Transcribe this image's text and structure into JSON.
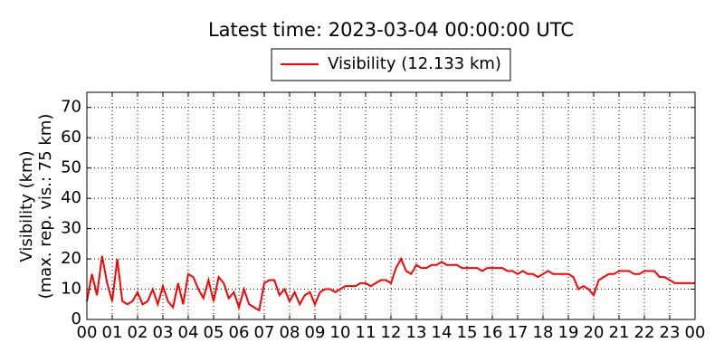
{
  "chart_data": {
    "type": "line",
    "title": "Latest time: 2023-03-04 00:00:00 UTC",
    "ylabel": [
      "Visibility (km)",
      "(max. rep. vis.: 75 km)"
    ],
    "x": [
      0,
      0.2,
      0.4,
      0.6,
      0.8,
      1,
      1.2,
      1.4,
      1.6,
      1.8,
      2,
      2.2,
      2.4,
      2.6,
      2.8,
      3,
      3.2,
      3.4,
      3.6,
      3.8,
      4,
      4.2,
      4.4,
      4.6,
      4.8,
      5,
      5.2,
      5.4,
      5.6,
      5.8,
      6,
      6.2,
      6.4,
      6.6,
      6.8,
      7,
      7.2,
      7.4,
      7.6,
      7.8,
      8,
      8.2,
      8.4,
      8.6,
      8.8,
      9,
      9.2,
      9.4,
      9.6,
      9.8,
      10,
      10.2,
      10.4,
      10.6,
      10.8,
      11,
      11.2,
      11.4,
      11.6,
      11.8,
      12,
      12.2,
      12.4,
      12.6,
      12.8,
      13,
      13.2,
      13.4,
      13.6,
      13.8,
      14,
      14.2,
      14.4,
      14.6,
      14.8,
      15,
      15.2,
      15.4,
      15.6,
      15.8,
      16,
      16.2,
      16.4,
      16.6,
      16.8,
      17,
      17.2,
      17.4,
      17.6,
      17.8,
      18,
      18.2,
      18.4,
      18.6,
      18.8,
      19,
      19.2,
      19.4,
      19.6,
      19.8,
      20,
      20.2,
      20.4,
      20.6,
      20.8,
      21,
      21.2,
      21.4,
      21.6,
      21.8,
      22,
      22.2,
      22.4,
      22.6,
      22.8,
      23,
      23.2,
      23.4,
      23.6,
      23.8,
      24
    ],
    "series": [
      {
        "name": "Visibility (12.133 km)",
        "color": "#ff0000",
        "values": [
          6,
          15,
          8,
          21,
          12,
          6,
          20,
          6,
          5,
          6,
          9,
          5,
          6,
          10,
          5,
          11,
          6,
          4,
          12,
          5,
          15,
          14,
          10,
          7,
          13,
          6,
          14,
          12,
          7,
          9,
          4,
          10,
          5,
          4,
          3,
          12,
          13,
          13,
          8,
          10,
          6,
          9,
          5,
          8,
          9,
          5,
          9,
          10,
          10,
          9,
          10,
          11,
          11,
          11,
          12,
          12,
          11,
          12,
          13,
          13,
          12,
          17,
          20,
          16,
          15,
          18,
          17,
          17,
          18,
          18,
          19,
          18,
          18,
          18,
          17,
          17,
          17,
          17,
          16,
          17,
          17,
          17,
          17,
          16,
          16,
          15,
          16,
          15,
          15,
          14,
          15,
          16,
          15,
          15,
          15,
          15,
          14,
          10,
          11,
          10,
          8,
          13,
          14,
          15,
          15,
          16,
          16,
          16,
          15,
          15,
          16,
          16,
          16,
          14,
          14,
          13,
          12,
          12,
          12,
          12,
          12
        ]
      }
    ],
    "xlim": [
      0,
      24
    ],
    "xticks": [
      {
        "value": 0,
        "label": "00"
      },
      {
        "value": 1,
        "label": "01"
      },
      {
        "value": 2,
        "label": "02"
      },
      {
        "value": 3,
        "label": "03"
      },
      {
        "value": 4,
        "label": "04"
      },
      {
        "value": 5,
        "label": "05"
      },
      {
        "value": 6,
        "label": "06"
      },
      {
        "value": 7,
        "label": "07"
      },
      {
        "value": 8,
        "label": "08"
      },
      {
        "value": 9,
        "label": "09"
      },
      {
        "value": 10,
        "label": "10"
      },
      {
        "value": 11,
        "label": "11"
      },
      {
        "value": 12,
        "label": "12"
      },
      {
        "value": 13,
        "label": "13"
      },
      {
        "value": 14,
        "label": "14"
      },
      {
        "value": 15,
        "label": "15"
      },
      {
        "value": 16,
        "label": "16"
      },
      {
        "value": 17,
        "label": "17"
      },
      {
        "value": 18,
        "label": "18"
      },
      {
        "value": 19,
        "label": "19"
      },
      {
        "value": 20,
        "label": "20"
      },
      {
        "value": 21,
        "label": "21"
      },
      {
        "value": 22,
        "label": "22"
      },
      {
        "value": 23,
        "label": "23"
      },
      {
        "value": 24,
        "label": "00"
      }
    ],
    "ylim": [
      0,
      75
    ],
    "yticks": [
      0,
      10,
      20,
      30,
      40,
      50,
      60,
      70
    ],
    "grid": true,
    "legend": "top"
  }
}
